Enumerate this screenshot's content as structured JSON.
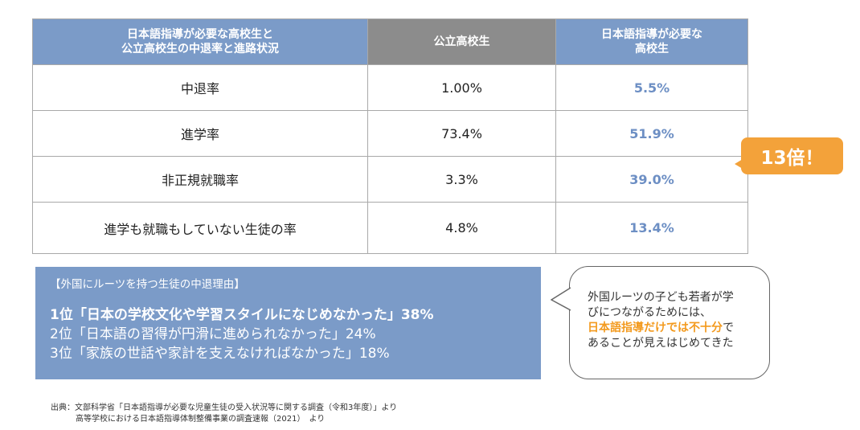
{
  "table": {
    "headers": [
      [
        "日本語指導が必要な高校生と",
        "公立高校生の中退率と進路状況"
      ],
      [
        "公立高校生"
      ],
      [
        "日本語指導が必要な",
        "高校生"
      ]
    ],
    "rows": [
      {
        "label": "中退率",
        "public": "1.00%",
        "jsl": "5.5%"
      },
      {
        "label": "進学率",
        "public": "73.4%",
        "jsl": "51.9%"
      },
      {
        "label": "非正規就職率",
        "public": "3.3%",
        "jsl": "39.0%"
      },
      {
        "label": "進学も就職もしていない生徒の率",
        "public": "4.8%",
        "jsl": "13.4%"
      }
    ]
  },
  "badge": {
    "text": "13倍！",
    "color": "#f3a23a"
  },
  "reasons": {
    "title": "【外国にルーツを持つ生徒の中退理由】",
    "items": [
      "1位「日本の学校文化や学習スタイルになじめなかった」38%",
      "2位「日本語の習得が円滑に進められなかった」24%",
      "3位「家族の世話や家計を支えなければなかった」18%"
    ]
  },
  "bubble": {
    "line1": "外国ルーツの子ども若者が学",
    "line2": "びにつながるためには、",
    "highlight": "日本語指導だけでは不十分",
    "after_highlight": "で",
    "line4": "あることが見えはじめてきた"
  },
  "source": {
    "label": "出典：",
    "line1": "文部科学省「日本語指導が必要な児童生徒の受入状況等に関する調査（令和3年度）」より",
    "line2": "高等学校における日本語指導体制整備事業の調査速報（2021）　より"
  },
  "colors": {
    "header_blue": "#7b9bc8",
    "header_gray": "#8c8c8c",
    "value_blue": "#6d8fc4",
    "accent_orange": "#f39a1e"
  }
}
